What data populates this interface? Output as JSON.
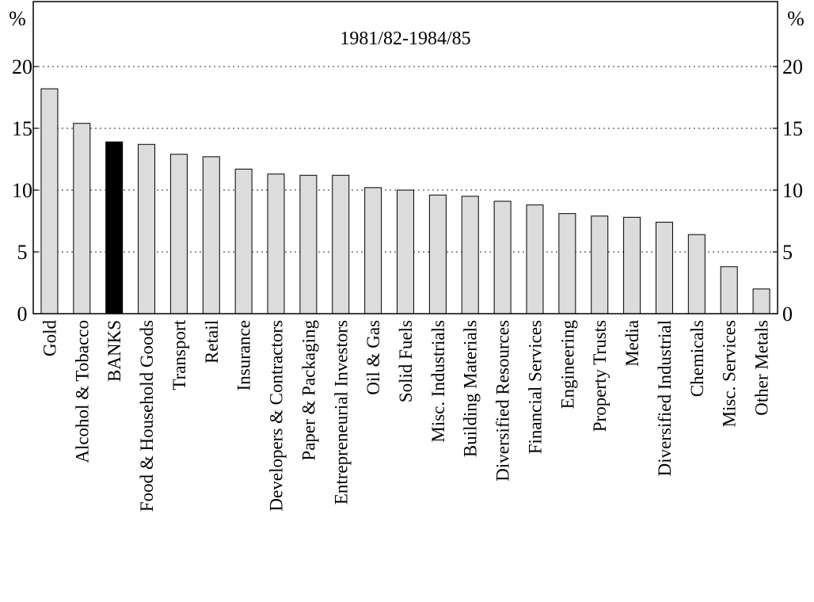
{
  "chart_data": {
    "type": "bar",
    "title": "1981/82-1984/85",
    "ylabel_left": "%",
    "ylabel_right": "%",
    "ylim": [
      0,
      25
    ],
    "yticks": [
      0,
      5,
      10,
      15,
      20
    ],
    "grid": "dotted horizontal at 5, 10, 15, 20",
    "highlight_category": "BANKS",
    "colors": {
      "bar": "#dcdcdc",
      "highlight": "#000000",
      "stroke": "#000000",
      "grid": "#555555"
    },
    "categories": [
      "Gold",
      "Alcohol & Tobacco",
      "BANKS",
      "Food & Household Goods",
      "Transport",
      "Retail",
      "Insurance",
      "Developers & Contractors",
      "Paper & Packaging",
      "Entrepreneurial Investors",
      "Oil & Gas",
      "Solid Fuels",
      "Misc. Industrials",
      "Building Materials",
      "Diversified Resources",
      "Financial Services",
      "Engineering",
      "Property Trusts",
      "Media",
      "Diversified Industrial",
      "Chemicals",
      "Misc. Services",
      "Other Metals"
    ],
    "values": [
      18.2,
      15.4,
      13.9,
      13.7,
      12.9,
      12.7,
      11.7,
      11.3,
      11.2,
      11.2,
      10.2,
      10.0,
      9.6,
      9.5,
      9.1,
      8.8,
      8.1,
      7.9,
      7.8,
      7.4,
      6.4,
      3.8,
      2.0
    ]
  }
}
